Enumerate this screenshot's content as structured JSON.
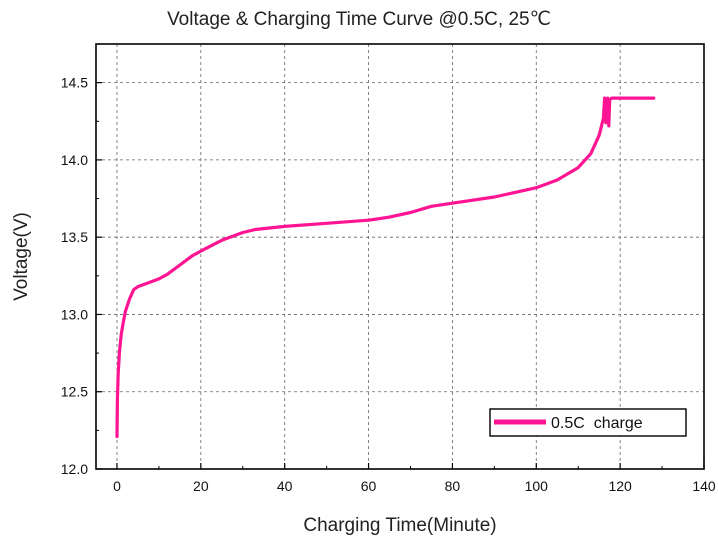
{
  "chart_data": {
    "type": "line",
    "title": "Voltage & Charging Time Curve @0.5C, 25℃",
    "xlabel": "Charging Time(Minute)",
    "ylabel": "Voltage(V)",
    "xlim": [
      -5,
      140
    ],
    "ylim": [
      12.0,
      14.75
    ],
    "xticks": [
      0,
      20,
      40,
      60,
      80,
      100,
      120,
      140
    ],
    "yticks": [
      12.0,
      12.5,
      13.0,
      13.5,
      14.0,
      14.5
    ],
    "xtick_labels": [
      "0",
      "20",
      "40",
      "60",
      "80",
      "100",
      "120",
      "140"
    ],
    "ytick_labels": [
      "12.0",
      "12.5",
      "13.0",
      "13.5",
      "14.0",
      "14.5"
    ],
    "grid": true,
    "legend": {
      "position": "bottom-right"
    },
    "series": [
      {
        "name": "0.5C  charge",
        "color": "#ff1493",
        "x": [
          0,
          0.1,
          0.3,
          0.6,
          1,
          1.5,
          2,
          3,
          4,
          5,
          6,
          8,
          10,
          12,
          15,
          18,
          20,
          25,
          30,
          33,
          40,
          50,
          60,
          65,
          70,
          75,
          80,
          90,
          100,
          105,
          110,
          113,
          115,
          116,
          116.3,
          116.6,
          117,
          117.3,
          117.5,
          118,
          120,
          124,
          128
        ],
        "y": [
          12.21,
          12.45,
          12.62,
          12.76,
          12.87,
          12.95,
          13.02,
          13.1,
          13.16,
          13.18,
          13.19,
          13.21,
          13.23,
          13.26,
          13.32,
          13.38,
          13.41,
          13.48,
          13.53,
          13.55,
          13.57,
          13.59,
          13.61,
          13.63,
          13.66,
          13.7,
          13.72,
          13.76,
          13.82,
          13.87,
          13.95,
          14.04,
          14.16,
          14.27,
          14.4,
          14.24,
          14.4,
          14.22,
          14.39,
          14.4,
          14.4,
          14.4,
          14.4
        ]
      }
    ]
  }
}
